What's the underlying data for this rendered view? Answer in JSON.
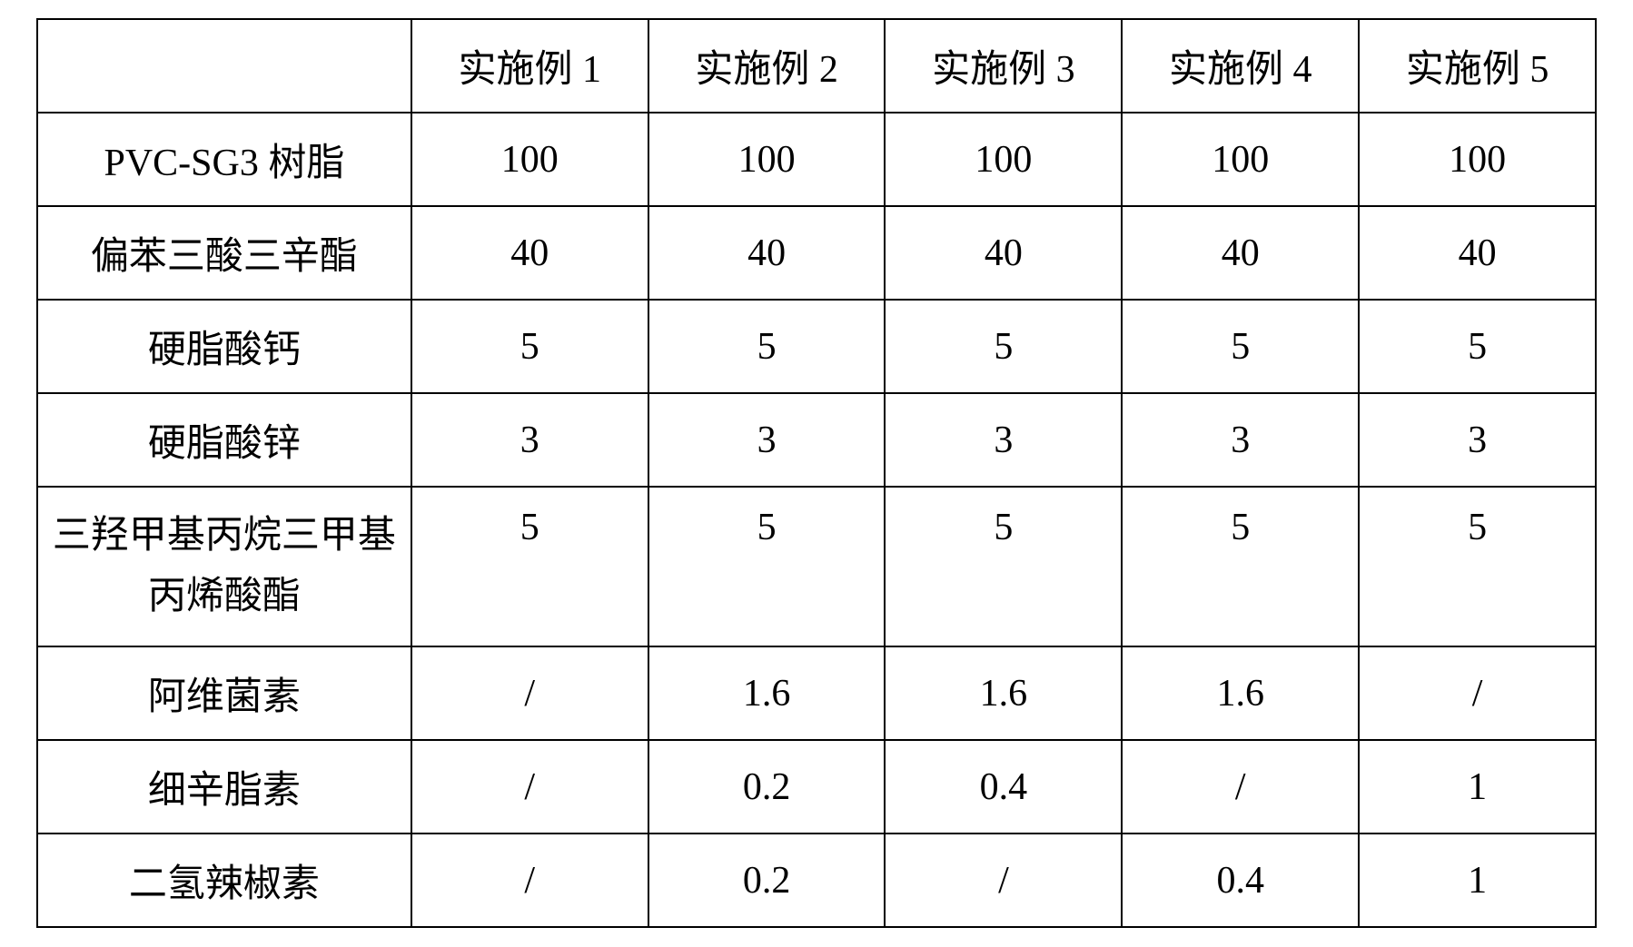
{
  "table": {
    "columns": [
      "",
      "实施例 1",
      "实施例 2",
      "实施例 3",
      "实施例 4",
      "实施例 5"
    ],
    "rows": [
      {
        "label": "PVC-SG3 树脂",
        "cells": [
          "100",
          "100",
          "100",
          "100",
          "100"
        ]
      },
      {
        "label": "偏苯三酸三辛酯",
        "cells": [
          "40",
          "40",
          "40",
          "40",
          "40"
        ]
      },
      {
        "label": "硬脂酸钙",
        "cells": [
          "5",
          "5",
          "5",
          "5",
          "5"
        ]
      },
      {
        "label": "硬脂酸锌",
        "cells": [
          "3",
          "3",
          "3",
          "3",
          "3"
        ]
      },
      {
        "label": "三羟甲基丙烷三甲基丙烯酸酯",
        "cells": [
          "5",
          "5",
          "5",
          "5",
          "5"
        ],
        "tall": true
      },
      {
        "label": "阿维菌素",
        "cells": [
          "/",
          "1.6",
          "1.6",
          "1.6",
          "/"
        ]
      },
      {
        "label": "细辛脂素",
        "cells": [
          "/",
          "0.2",
          "0.4",
          "/",
          "1"
        ]
      },
      {
        "label": "二氢辣椒素",
        "cells": [
          "/",
          "0.2",
          "/",
          "0.4",
          "1"
        ]
      }
    ],
    "border_color": "#000000",
    "background_color": "#ffffff",
    "font_size_pt": 32
  }
}
